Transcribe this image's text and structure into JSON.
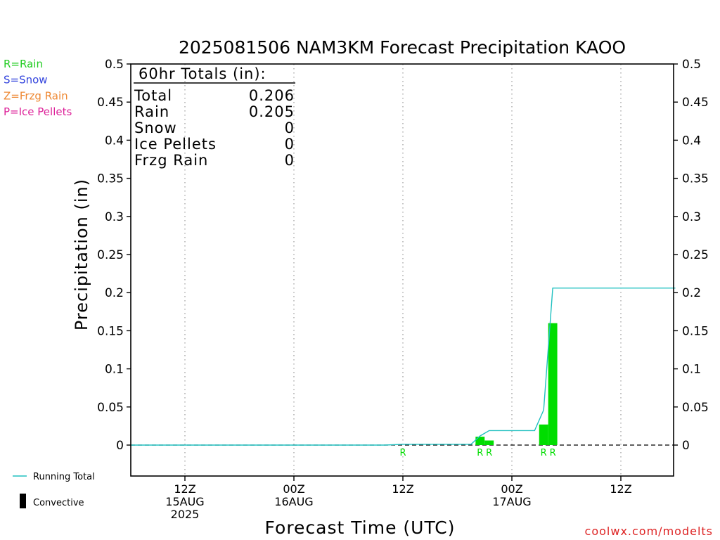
{
  "chart_data": {
    "type": "bar",
    "title": "2025081506 NAM3KM Forecast Precipitation KAOO",
    "xlabel": "Forecast Time (UTC)",
    "ylabel": "Precipitation (in)",
    "ylim": [
      -0.04,
      0.5
    ],
    "xlim_hours": [
      -0.5,
      60
    ],
    "y_ticks": [
      "0",
      "0.05",
      "0.1",
      "0.15",
      "0.2",
      "0.25",
      "0.3",
      "0.35",
      "0.4",
      "0.45",
      "0.5"
    ],
    "x_ticks": [
      {
        "hour": 6,
        "lines": [
          "12Z",
          "15AUG",
          "2025"
        ]
      },
      {
        "hour": 18,
        "lines": [
          "00Z",
          "16AUG"
        ]
      },
      {
        "hour": 30,
        "lines": [
          "12Z"
        ]
      },
      {
        "hour": 42,
        "lines": [
          "00Z",
          "17AUG"
        ]
      },
      {
        "hour": 54,
        "lines": [
          "12Z"
        ]
      }
    ],
    "grid": "vertical-dotted",
    "series": [
      {
        "name": "Rain",
        "color": "#00dd00",
        "bars": [
          {
            "hour": 38.5,
            "value": 0.011,
            "label": "R"
          },
          {
            "hour": 39.5,
            "value": 0.006,
            "label": "R"
          },
          {
            "hour": 45.5,
            "value": 0.027,
            "label": "R"
          },
          {
            "hour": 46.5,
            "value": 0.16,
            "label": "R"
          }
        ],
        "trace_labels": [
          {
            "hour": 30,
            "label": "R"
          }
        ]
      },
      {
        "name": "Running Total",
        "color": "#20c0c0",
        "type": "line",
        "points": [
          [
            0,
            0
          ],
          [
            28,
            0
          ],
          [
            30,
            0.001
          ],
          [
            37.5,
            0.001
          ],
          [
            38.5,
            0.012
          ],
          [
            39.5,
            0.019
          ],
          [
            44.5,
            0.019
          ],
          [
            45.5,
            0.046
          ],
          [
            46.5,
            0.206
          ],
          [
            60,
            0.206
          ]
        ]
      }
    ],
    "totals_box": {
      "header": "60hr Totals (in):",
      "rows": [
        {
          "label": "Total",
          "value": "0.206"
        },
        {
          "label": "Rain",
          "value": "0.205"
        },
        {
          "label": "Snow",
          "value": "0"
        },
        {
          "label": "Ice Pellets",
          "value": "0"
        },
        {
          "label": "Frzg Rain",
          "value": "0"
        }
      ]
    },
    "type_legend": [
      {
        "text": "R=Rain",
        "color": "#22cc22"
      },
      {
        "text": "S=Snow",
        "color": "#3344dd"
      },
      {
        "text": "Z=Frzg Rain",
        "color": "#ee8833"
      },
      {
        "text": "P=Ice Pellets",
        "color": "#dd2299"
      }
    ],
    "bottom_legend": [
      {
        "text": "Running Total",
        "kind": "line",
        "color": "#20c0c0"
      },
      {
        "text": "Convective",
        "kind": "bar",
        "color": "#000000"
      }
    ]
  },
  "credit": "coolwx.com/modelts"
}
